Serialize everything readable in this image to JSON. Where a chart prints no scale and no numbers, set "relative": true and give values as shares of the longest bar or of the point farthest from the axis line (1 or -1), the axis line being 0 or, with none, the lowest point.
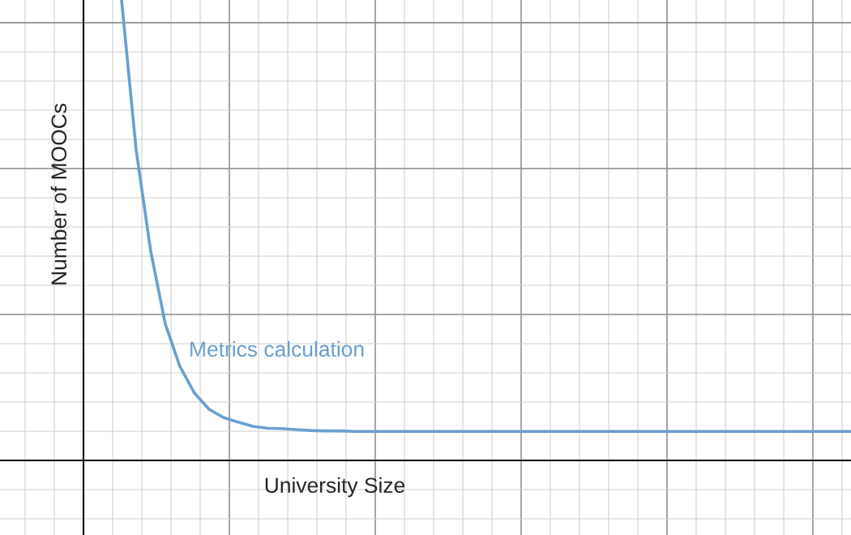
{
  "chart_data": {
    "type": "line",
    "relative": true,
    "xlabel": "University Size",
    "ylabel": "Number of MOOCs",
    "grid": true,
    "categories": [
      null,
      null,
      null,
      null,
      null,
      null,
      null,
      null,
      null,
      null,
      null,
      null,
      null,
      null,
      null,
      null,
      null,
      null,
      null,
      null,
      null,
      null,
      null,
      null,
      null,
      null,
      null,
      null,
      null,
      null,
      null,
      null,
      null,
      null,
      null,
      null,
      null,
      null,
      null,
      null,
      null,
      null,
      null,
      null,
      null,
      null,
      null,
      null,
      null,
      null,
      null
    ],
    "series": [
      {
        "color": "#6a9fd0",
        "values": [
          1.0,
          0.674,
          0.454,
          0.296,
          0.204,
          0.146,
          0.111,
          0.093,
          0.083,
          0.074,
          0.07,
          0.069,
          0.067,
          0.065,
          0.064,
          0.064,
          0.063,
          0.063,
          0.063,
          0.063,
          0.063,
          0.063,
          0.063,
          0.063,
          0.063,
          0.063,
          0.063,
          0.063,
          0.063,
          0.063,
          0.063,
          0.063,
          0.063,
          0.063,
          0.063,
          0.063,
          0.063,
          0.063,
          0.063,
          0.063,
          0.063,
          0.063,
          0.063,
          0.063,
          0.063,
          0.063,
          0.063,
          0.063,
          0.063,
          0.063,
          0.063
        ]
      }
    ],
    "annotations": [
      {
        "text": "Metrics calculation"
      }
    ]
  }
}
